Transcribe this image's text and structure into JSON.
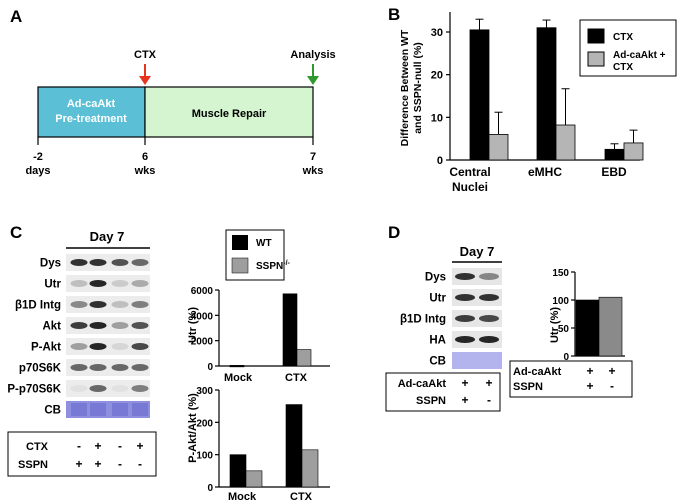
{
  "panel_letters": {
    "a": "A",
    "b": "B",
    "c": "C",
    "d": "D"
  },
  "panel_a": {
    "event_ctx": "CTX",
    "event_analysis": "Analysis",
    "phase_1_line1": "Ad-caAkt",
    "phase_1_line2": "Pre-treatment",
    "phase_2": "Muscle Repair",
    "tick_1": "-2",
    "tick_1_unit": "days",
    "tick_2": "6",
    "tick_2_unit": "wks",
    "tick_3": "7",
    "tick_3_unit": "wks",
    "colors": {
      "pretreatment": "#5bbfd6",
      "repair": "#d4f5cf",
      "ctx_arrow": "#e8341c",
      "analysis_arrow": "#2e9a2e"
    }
  },
  "panel_c": {
    "blot_title": "Day 7",
    "blot_rows": [
      "Dys",
      "Utr",
      "β1D Intg",
      "Akt",
      "P-Akt",
      "p70S6K",
      "P-p70S6K",
      "CB"
    ],
    "condition_rows": [
      {
        "label": "CTX",
        "values": [
          "-",
          "+",
          "-",
          "+"
        ]
      },
      {
        "label": "SSPN",
        "values": [
          "+",
          "+",
          "-",
          "-"
        ]
      }
    ],
    "legend": {
      "wt": "WT",
      "sspn_base": "SSPN",
      "sspn_sup": "-/-"
    }
  },
  "panel_d": {
    "blot_title": "Day 7",
    "blot_rows": [
      "Dys",
      "Utr",
      "β1D Intg",
      "HA",
      "CB"
    ],
    "condition_rows": [
      {
        "label": "Ad-caAkt",
        "values": [
          "+",
          "+"
        ]
      },
      {
        "label": "SSPN",
        "values": [
          "+",
          "-"
        ]
      }
    ],
    "chart_conditions": [
      {
        "label": "Ad-caAkt",
        "values": [
          "+",
          "+"
        ]
      },
      {
        "label": "SSPN",
        "values": [
          "+",
          "-"
        ]
      }
    ]
  },
  "chart_data": [
    {
      "id": "B",
      "type": "bar",
      "title": "",
      "categories": [
        "Central Nuclei",
        "eMHC",
        "EBD"
      ],
      "category_lines": [
        [
          "Central",
          "Nuclei"
        ],
        [
          "eMHC"
        ],
        [
          "EBD"
        ]
      ],
      "series": [
        {
          "name": "CTX",
          "color": "#000000",
          "values": [
            30.5,
            31,
            2.5
          ],
          "errors": [
            2.5,
            1.8,
            1.3
          ]
        },
        {
          "name": "Ad-caAkt + CTX",
          "name_lines": [
            "Ad-caAkt +",
            "CTX"
          ],
          "color": "#b5b5b5",
          "values": [
            6,
            8.2,
            4
          ],
          "errors": [
            5.2,
            8.5,
            3
          ]
        }
      ],
      "ylabel_lines": [
        "Difference Between WT",
        "and SSPN-null (%)"
      ],
      "ylim": [
        0,
        35
      ],
      "yticks": [
        "0",
        "10",
        "20",
        "30"
      ],
      "legend_position": "top-right"
    },
    {
      "id": "C-Utr",
      "type": "bar",
      "categories": [
        "Mock",
        "CTX"
      ],
      "series": [
        {
          "name": "WT",
          "color": "#000000",
          "values": [
            50,
            5700
          ]
        },
        {
          "name": "SSPN-/-",
          "color": "#9e9e9e",
          "values": [
            0,
            1300
          ]
        }
      ],
      "ylabel": "Utr (%)",
      "ylim": [
        0,
        6000
      ],
      "yticks": [
        "0",
        "2000",
        "4000",
        "6000"
      ]
    },
    {
      "id": "C-PAkt",
      "type": "bar",
      "categories": [
        "Mock",
        "CTX"
      ],
      "series": [
        {
          "name": "WT",
          "color": "#000000",
          "values": [
            100,
            255
          ]
        },
        {
          "name": "SSPN-/-",
          "color": "#9e9e9e",
          "values": [
            50,
            115
          ]
        }
      ],
      "ylabel": "P-Akt/Akt (%)",
      "ylim": [
        0,
        300
      ],
      "yticks": [
        "0",
        "100",
        "200",
        "300"
      ]
    },
    {
      "id": "D-Utr",
      "type": "bar",
      "categories": [
        "Ad-caAkt +/SSPN +",
        "Ad-caAkt +/SSPN -"
      ],
      "series": [
        {
          "name": "Utr",
          "colors": [
            "#000000",
            "#8a8a8a"
          ],
          "values": [
            100,
            105
          ]
        }
      ],
      "ylabel": "Utr (%)",
      "ylim": [
        0,
        150
      ],
      "yticks": [
        "0",
        "50",
        "100",
        "150"
      ]
    }
  ]
}
